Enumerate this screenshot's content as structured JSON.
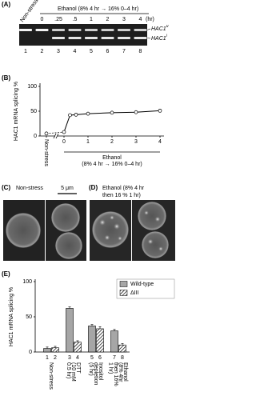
{
  "panel_a": {
    "label": "(A)",
    "condition": "Ethanol (8% 4 hr → 16% 0–4 hr)",
    "control": "Non-stress",
    "times": [
      "0",
      ".25",
      ".5",
      "1",
      "2",
      "3",
      "4"
    ],
    "time_unit": "(hr)",
    "bands": [
      {
        "name": "HAC1",
        "sup": "u"
      },
      {
        "name": "HAC1",
        "sup": "i"
      }
    ],
    "lanes": [
      "1",
      "2",
      "3",
      "4",
      "5",
      "6",
      "7",
      "8"
    ]
  },
  "chart_data": [
    {
      "type": "line",
      "label": "(B)",
      "y_label": "HAC1 mRNA splicing %",
      "x_label_lines": [
        "Ethanol",
        "(8% 4 hr → 16% 0–4 hr)"
      ],
      "reference": {
        "label": "Non-stress",
        "value": 5
      },
      "x": [
        0,
        0.25,
        0.5,
        1,
        2,
        3,
        4
      ],
      "values": [
        8,
        42,
        43,
        45,
        47,
        48,
        51
      ],
      "errors": [
        1,
        2,
        2,
        2,
        2,
        2,
        3
      ],
      "xlim": [
        0,
        4
      ],
      "xticks": [
        0,
        1,
        2,
        3,
        4
      ],
      "ylim": [
        0,
        100
      ],
      "yticks": [
        0,
        50,
        100
      ],
      "color": "#000000"
    },
    {
      "type": "bar",
      "label": "(E)",
      "y_label": "HAC1 mRNA splicing %",
      "categories": [
        [
          "Non-stress"
        ],
        [
          "DTT",
          "(10 mM",
          "0.5 hr)"
        ],
        [
          "Inositol",
          "depletion",
          "(5 hr)"
        ],
        [
          "Ethanol",
          "(8% 4hr",
          "then 16%",
          "1 hr)"
        ]
      ],
      "lanes": [
        "1",
        "2",
        "3",
        "4",
        "5",
        "6",
        "7",
        "8"
      ],
      "series": [
        {
          "name": "Wild-type",
          "color": "#a6a6a6",
          "values": [
            5,
            62,
            37,
            30
          ],
          "errors": [
            2,
            2,
            2,
            2
          ]
        },
        {
          "name": "ΔIII",
          "color": "#000000",
          "pattern": "hatch",
          "values": [
            6,
            14,
            33,
            10
          ],
          "errors": [
            2,
            2,
            3,
            2
          ]
        }
      ],
      "ylim": [
        0,
        100
      ],
      "yticks": [
        0,
        50,
        100
      ]
    }
  ],
  "panel_c": {
    "label": "(C)",
    "condition": "Non-stress",
    "scale_bar": "5 μm"
  },
  "panel_d": {
    "label": "(D)",
    "condition_lines": [
      "Ethanol (8% 4 hr",
      "then 16 % 1 hr)"
    ]
  }
}
